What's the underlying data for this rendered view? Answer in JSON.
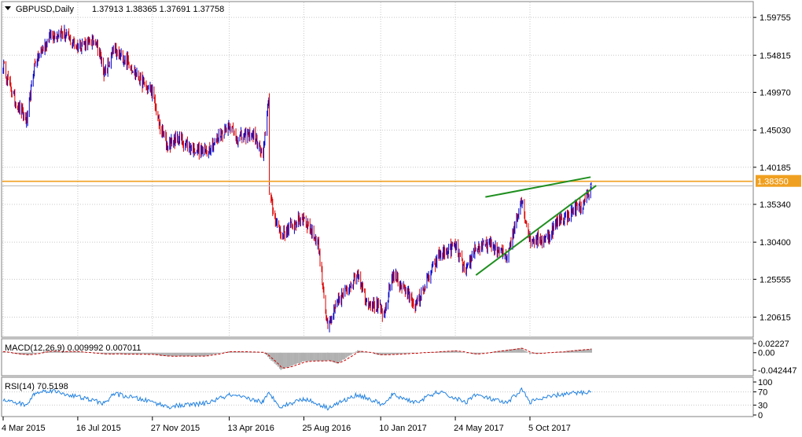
{
  "header": {
    "symbol": "GBPUSD,Daily",
    "ohlc": "1.37913 1.38365 1.37691 1.37758"
  },
  "colors": {
    "up_candle": "#0000cc",
    "down_candle": "#dd0000",
    "resistance_line": "#f0a020",
    "trendline": "#1f8f1f",
    "grid": "#c8c8c8",
    "macd_hist": "#b0b0b0",
    "macd_signal": "#cc0000",
    "rsi_line": "#2080e0",
    "price_badge_bg": "#f0a020",
    "price_badge_text": "#ffffff"
  },
  "chart_data": [
    {
      "type": "candlestick",
      "title": "GBPUSD,Daily",
      "ylim": [
        1.182,
        1.61
      ],
      "y_ticks": [
        "1.59755",
        "1.54815",
        "1.49970",
        "1.45030",
        "1.40185",
        "1.35340",
        "1.30400",
        "1.25555",
        "1.20615"
      ],
      "x_ticks": [
        "4 Mar 2015",
        "16 Jul 2015",
        "27 Nov 2015",
        "13 Apr 2016",
        "25 Aug 2016",
        "10 Jan 2017",
        "24 May 2017",
        "5 Oct 2017"
      ],
      "horizontal_level": {
        "value": 1.3835,
        "label": "1.38350"
      },
      "current_price": 1.37758,
      "trendlines": [
        {
          "name": "upper",
          "from": [
            "17 Jul 2017",
            1.363
          ],
          "to": [
            "22 Jan 2018",
            1.389
          ]
        },
        {
          "name": "lower",
          "from": [
            "30 Jun 2017",
            1.261
          ],
          "to": [
            "1 Feb 2018",
            1.378
          ]
        }
      ],
      "price_path": [
        [
          "4 Mar 2015",
          1.535
        ],
        [
          "26 Mar 2015",
          1.488
        ],
        [
          "16 Apr 2015",
          1.462
        ],
        [
          "29 Apr 2015",
          1.535
        ],
        [
          "26 May 2015",
          1.573
        ],
        [
          "18 Jun 2015",
          1.578
        ],
        [
          "16 Jul 2015",
          1.56
        ],
        [
          "18 Aug 2015",
          1.567
        ],
        [
          "3 Sep 2015",
          1.522
        ],
        [
          "18 Sep 2015",
          1.555
        ],
        [
          "14 Oct 2015",
          1.54
        ],
        [
          "2 Nov 2015",
          1.518
        ],
        [
          "27 Nov 2015",
          1.5
        ],
        [
          "9 Dec 2015",
          1.458
        ],
        [
          "24 Dec 2015",
          1.431
        ],
        [
          "14 Jan 2016",
          1.439
        ],
        [
          "12 Feb 2016",
          1.425
        ],
        [
          "1 Mar 2016",
          1.421
        ],
        [
          "13 Apr 2016",
          1.458
        ],
        [
          "27 Apr 2016",
          1.44
        ],
        [
          "26 May 2016",
          1.445
        ],
        [
          "13 Jun 2016",
          1.415
        ],
        [
          "23 Jun 2016",
          1.497
        ],
        [
          "24 Jun 2016",
          1.368
        ],
        [
          "1 Jul 2016",
          1.343
        ],
        [
          "15 Jul 2016",
          1.313
        ],
        [
          "2 Aug 2016",
          1.325
        ],
        [
          "25 Aug 2016",
          1.337
        ],
        [
          "20 Sep 2016",
          1.302
        ],
        [
          "7 Oct 2016",
          1.19
        ],
        [
          "25 Oct 2016",
          1.225
        ],
        [
          "30 Nov 2016",
          1.264
        ],
        [
          "14 Dec 2016",
          1.23
        ],
        [
          "10 Jan 2017",
          1.216
        ],
        [
          "16 Jan 2017",
          1.205
        ],
        [
          "31 Jan 2017",
          1.262
        ],
        [
          "21 Feb 2017",
          1.244
        ],
        [
          "14 Mar 2017",
          1.221
        ],
        [
          "24 Apr 2017",
          1.286
        ],
        [
          "24 May 2017",
          1.3
        ],
        [
          "12 Jun 2017",
          1.262
        ],
        [
          "27 Jun 2017",
          1.295
        ],
        [
          "26 Jul 2017",
          1.302
        ],
        [
          "11 Aug 2017",
          1.291
        ],
        [
          "25 Aug 2017",
          1.287
        ],
        [
          "20 Sep 2017",
          1.361
        ],
        [
          "5 Oct 2017",
          1.306
        ],
        [
          "3 Nov 2017",
          1.308
        ],
        [
          "28 Nov 2017",
          1.335
        ],
        [
          "15 Dec 2017",
          1.339
        ],
        [
          "29 Dec 2017",
          1.352
        ],
        [
          "8 Jan 2018",
          1.35
        ],
        [
          "23 Jan 2018",
          1.377
        ]
      ]
    },
    {
      "type": "line",
      "title": "MACD(12,26,9) 0.009992 0.007011",
      "ylim": [
        -0.052,
        0.03
      ],
      "y_ticks": [
        "0.02227",
        "0.00",
        "-0.042447"
      ],
      "macd_path": [
        [
          "4 Mar 2015",
          0.002
        ],
        [
          "16 Apr 2015",
          -0.006
        ],
        [
          "26 May 2015",
          0.004
        ],
        [
          "16 Jul 2015",
          0.002
        ],
        [
          "3 Sep 2015",
          -0.003
        ],
        [
          "27 Nov 2015",
          -0.004
        ],
        [
          "24 Dec 2015",
          -0.009
        ],
        [
          "1 Mar 2016",
          -0.008
        ],
        [
          "13 Apr 2016",
          0.003
        ],
        [
          "13 Jun 2016",
          0.001
        ],
        [
          "15 Jul 2016",
          -0.041
        ],
        [
          "25 Aug 2016",
          -0.021
        ],
        [
          "7 Oct 2016",
          -0.019
        ],
        [
          "25 Oct 2016",
          -0.026
        ],
        [
          "30 Nov 2016",
          0.006
        ],
        [
          "10 Jan 2017",
          -0.006
        ],
        [
          "24 May 2017",
          0.005
        ],
        [
          "27 Jun 2017",
          -0.004
        ],
        [
          "20 Sep 2017",
          0.011
        ],
        [
          "5 Oct 2017",
          -0.003
        ],
        [
          "28 Nov 2017",
          0.002
        ],
        [
          "23 Jan 2018",
          0.009992
        ]
      ]
    },
    {
      "type": "line",
      "title": "RSI(14) 70.5198",
      "ylim": [
        0,
        100
      ],
      "y_ticks": [
        "100",
        "70",
        "30",
        "0"
      ],
      "rsi_path": [
        [
          "4 Mar 2015",
          45
        ],
        [
          "16 Apr 2015",
          30
        ],
        [
          "29 Apr 2015",
          65
        ],
        [
          "26 May 2015",
          75
        ],
        [
          "16 Jul 2015",
          55
        ],
        [
          "3 Sep 2015",
          35
        ],
        [
          "18 Sep 2015",
          65
        ],
        [
          "27 Nov 2015",
          40
        ],
        [
          "24 Dec 2015",
          25
        ],
        [
          "1 Mar 2016",
          35
        ],
        [
          "13 Apr 2016",
          60
        ],
        [
          "13 Jun 2016",
          40
        ],
        [
          "23 Jun 2016",
          65
        ],
        [
          "15 Jul 2016",
          25
        ],
        [
          "25 Aug 2016",
          50
        ],
        [
          "7 Oct 2016",
          22
        ],
        [
          "30 Nov 2016",
          62
        ],
        [
          "16 Jan 2017",
          30
        ],
        [
          "31 Jan 2017",
          62
        ],
        [
          "14 Mar 2017",
          38
        ],
        [
          "24 Apr 2017",
          70
        ],
        [
          "12 Jun 2017",
          38
        ],
        [
          "27 Jun 2017",
          62
        ],
        [
          "25 Aug 2017",
          35
        ],
        [
          "20 Sep 2017",
          78
        ],
        [
          "5 Oct 2017",
          40
        ],
        [
          "28 Nov 2017",
          62
        ],
        [
          "23 Jan 2018",
          70.5198
        ]
      ]
    }
  ]
}
